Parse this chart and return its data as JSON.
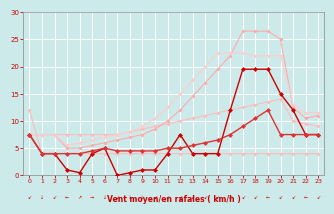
{
  "background_color": "#cceaea",
  "grid_color": "#aadddd",
  "xlabel": "Vent moyen/en rafales ( km/h )",
  "xlabel_color": "#cc0000",
  "tick_color": "#cc0000",
  "xlim": [
    -0.5,
    23.5
  ],
  "ylim": [
    0,
    30
  ],
  "yticks": [
    0,
    5,
    10,
    15,
    20,
    25,
    30
  ],
  "xticks": [
    0,
    1,
    2,
    3,
    4,
    5,
    6,
    7,
    8,
    9,
    10,
    11,
    12,
    13,
    14,
    15,
    16,
    17,
    18,
    19,
    20,
    21,
    22,
    23
  ],
  "series": [
    {
      "comment": "light pink - nearly flat line around 7.5, starts at 12",
      "x": [
        0,
        1,
        2,
        3,
        4,
        5,
        6,
        7,
        8,
        9,
        10,
        11,
        12,
        13,
        14,
        15,
        16,
        17,
        18,
        19,
        20,
        21,
        22,
        23
      ],
      "y": [
        12,
        4,
        4,
        4,
        4,
        4,
        4,
        4,
        4,
        4,
        4,
        4,
        4,
        4,
        4,
        4,
        4,
        4,
        4,
        4,
        4,
        4,
        4,
        4
      ],
      "color": "#ffbbbb",
      "linewidth": 0.8,
      "marker": "D",
      "markersize": 2.0
    },
    {
      "comment": "light pink - straight diagonal from ~7.5 to ~10",
      "x": [
        0,
        1,
        2,
        3,
        4,
        5,
        6,
        7,
        8,
        9,
        10,
        11,
        12,
        13,
        14,
        15,
        16,
        17,
        18,
        19,
        20,
        21,
        22,
        23
      ],
      "y": [
        7.5,
        7.5,
        7.5,
        7.5,
        7.5,
        7.5,
        7.5,
        7.5,
        8.0,
        8.5,
        9.0,
        9.5,
        10.0,
        10.5,
        11.0,
        11.5,
        12.0,
        12.5,
        13.0,
        13.5,
        14.0,
        10.0,
        9.5,
        9.0
      ],
      "color": "#ffbbbb",
      "linewidth": 0.8,
      "marker": "D",
      "markersize": 2.0
    },
    {
      "comment": "light pink - diagonal from ~7.5 at x=0 rising to ~26 at x=17, then drops",
      "x": [
        0,
        1,
        2,
        3,
        4,
        5,
        6,
        7,
        8,
        9,
        10,
        11,
        12,
        13,
        14,
        15,
        16,
        17,
        18,
        19,
        20,
        21,
        22,
        23
      ],
      "y": [
        7.5,
        7.5,
        7.5,
        5.0,
        5.0,
        5.5,
        6.0,
        6.5,
        7.0,
        7.5,
        8.5,
        10.0,
        12.0,
        14.5,
        17.0,
        19.5,
        22.0,
        26.5,
        26.5,
        26.5,
        25.0,
        12.5,
        10.5,
        11.0
      ],
      "color": "#ffaaaa",
      "linewidth": 0.8,
      "marker": "D",
      "markersize": 2.0
    },
    {
      "comment": "light pink - diagonal from ~7.5 at x=0 rising to ~22 at x=16",
      "x": [
        0,
        1,
        2,
        3,
        4,
        5,
        6,
        7,
        8,
        9,
        10,
        11,
        12,
        13,
        14,
        15,
        16,
        17,
        18,
        19,
        20,
        21,
        22,
        23
      ],
      "y": [
        7.5,
        7.5,
        7.5,
        5.5,
        6.0,
        6.5,
        7.0,
        7.5,
        8.0,
        9.0,
        10.5,
        12.5,
        15.0,
        17.5,
        20.0,
        22.5,
        22.5,
        22.5,
        22.0,
        22.0,
        22.0,
        13.0,
        11.5,
        11.5
      ],
      "color": "#ffcccc",
      "linewidth": 0.8,
      "marker": "D",
      "markersize": 2.0
    },
    {
      "comment": "dark red - jagged line with peak at x=17~20",
      "x": [
        0,
        1,
        2,
        3,
        4,
        5,
        6,
        7,
        8,
        9,
        10,
        11,
        12,
        13,
        14,
        15,
        16,
        17,
        18,
        19,
        20,
        21,
        22,
        23
      ],
      "y": [
        7.5,
        4.0,
        4.0,
        1.0,
        0.5,
        4.0,
        5.0,
        0.0,
        0.5,
        1.0,
        1.0,
        4.0,
        7.5,
        4.0,
        4.0,
        4.0,
        12.0,
        19.5,
        19.5,
        19.5,
        15.0,
        12.0,
        7.5,
        7.5
      ],
      "color": "#cc0000",
      "linewidth": 1.0,
      "marker": "D",
      "markersize": 2.5
    },
    {
      "comment": "medium dark red - gently rising line",
      "x": [
        0,
        1,
        2,
        3,
        4,
        5,
        6,
        7,
        8,
        9,
        10,
        11,
        12,
        13,
        14,
        15,
        16,
        17,
        18,
        19,
        20,
        21,
        22,
        23
      ],
      "y": [
        7.5,
        4.0,
        4.0,
        4.0,
        4.0,
        4.5,
        5.0,
        4.5,
        4.5,
        4.5,
        4.5,
        5.0,
        5.0,
        5.5,
        6.0,
        6.5,
        7.5,
        9.0,
        10.5,
        12.0,
        7.5,
        7.5,
        7.5,
        7.5
      ],
      "color": "#dd3333",
      "linewidth": 1.0,
      "marker": "D",
      "markersize": 2.5
    }
  ],
  "arrows": [
    "↙",
    "↓",
    "↙",
    "←",
    "↗",
    "→",
    "↓",
    "↙",
    "↓",
    "↓",
    "↙",
    "↙",
    "↙",
    "↙",
    "↙",
    "↙",
    "↙",
    "↙",
    "↙",
    "←",
    "↙",
    "↙",
    "←",
    "↙"
  ]
}
